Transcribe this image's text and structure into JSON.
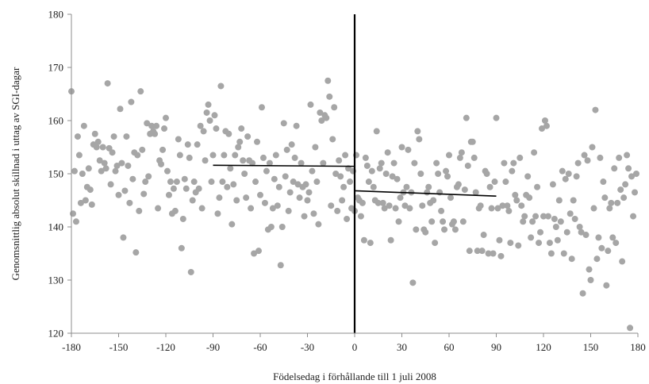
{
  "chart_data": {
    "type": "scatter",
    "title": "",
    "xlabel": "Födelsedag i förhållande till 1 juli 2008",
    "ylabel": "Genomsnittlig absolut skillnad i uttag av SGI-dagar",
    "xlim": [
      -180,
      180
    ],
    "ylim": [
      120,
      180
    ],
    "xticks": [
      "-180",
      "-150",
      "-120",
      "-90",
      "-60",
      "-30",
      "0",
      "30",
      "60",
      "90",
      "120",
      "150",
      "180"
    ],
    "yticks": [
      "120",
      "130",
      "140",
      "150",
      "160",
      "170",
      "180"
    ],
    "grid": false,
    "point_color": "#a6a6a6",
    "line_color": "#000000",
    "cutoff_x": 0,
    "fit_lines": [
      {
        "x": [
          -90,
          0
        ],
        "y": [
          151.6,
          151.4
        ]
      },
      {
        "x": [
          0,
          90
        ],
        "y": [
          146.8,
          145.8
        ]
      }
    ],
    "points_left": [
      [
        -180,
        165.5
      ],
      [
        -179,
        142.5
      ],
      [
        -178,
        150.5
      ],
      [
        -177,
        141.0
      ],
      [
        -176,
        157.0
      ],
      [
        -175,
        153.5
      ],
      [
        -174,
        144.5
      ],
      [
        -173,
        150.0
      ],
      [
        -172,
        159.0
      ],
      [
        -171,
        145.0
      ],
      [
        -170,
        147.5
      ],
      [
        -169,
        151.0
      ],
      [
        -168,
        147.0
      ],
      [
        -167,
        144.2
      ],
      [
        -166,
        155.5
      ],
      [
        -165,
        157.5
      ],
      [
        -164,
        155.0
      ],
      [
        -163,
        156.0
      ],
      [
        -162,
        152.5
      ],
      [
        -161,
        150.5
      ],
      [
        -160,
        155.0
      ],
      [
        -159,
        152.0
      ],
      [
        -158,
        151.0
      ],
      [
        -157,
        167.0
      ],
      [
        -156,
        154.8
      ],
      [
        -155,
        148.0
      ],
      [
        -154,
        154.0
      ],
      [
        -153,
        157.0
      ],
      [
        -152,
        150.5
      ],
      [
        -151,
        151.5
      ],
      [
        -150,
        146.0
      ],
      [
        -149,
        162.2
      ],
      [
        -148,
        152.0
      ],
      [
        -147,
        138.0
      ],
      [
        -146,
        146.8
      ],
      [
        -145,
        157.0
      ],
      [
        -144,
        151.5
      ],
      [
        -143,
        144.5
      ],
      [
        -142,
        163.5
      ],
      [
        -141,
        149.0
      ],
      [
        -140,
        154.0
      ],
      [
        -139,
        135.2
      ],
      [
        -138,
        153.5
      ],
      [
        -137,
        143.0
      ],
      [
        -136,
        165.5
      ],
      [
        -135,
        154.5
      ],
      [
        -134,
        146.2
      ],
      [
        -133,
        148.5
      ],
      [
        -132,
        159.5
      ],
      [
        -131,
        149.5
      ],
      [
        -130,
        157.5
      ],
      [
        -129,
        159.0
      ],
      [
        -128,
        158.0
      ],
      [
        -127,
        157.5
      ],
      [
        -126,
        159.0
      ],
      [
        -125,
        143.5
      ],
      [
        -124,
        152.5
      ],
      [
        -123,
        151.8
      ],
      [
        -122,
        154.5
      ],
      [
        -121,
        158.5
      ],
      [
        -120,
        160.5
      ],
      [
        -119,
        150.5
      ],
      [
        -118,
        146.0
      ],
      [
        -117,
        148.5
      ],
      [
        -116,
        142.5
      ],
      [
        -115,
        147.2
      ],
      [
        -114,
        143.0
      ],
      [
        -113,
        148.5
      ],
      [
        -112,
        156.5
      ],
      [
        -111,
        153.5
      ],
      [
        -110,
        136.0
      ],
      [
        -109,
        141.5
      ],
      [
        -108,
        149.0
      ],
      [
        -107,
        147.2
      ],
      [
        -106,
        155.5
      ],
      [
        -105,
        153.0
      ],
      [
        -104,
        131.5
      ],
      [
        -103,
        145.0
      ],
      [
        -102,
        148.5
      ],
      [
        -101,
        146.5
      ],
      [
        -100,
        155.5
      ],
      [
        -99,
        147.2
      ],
      [
        -98,
        159.0
      ],
      [
        -97,
        143.5
      ],
      [
        -96,
        158.0
      ],
      [
        -95,
        152.5
      ],
      [
        -94,
        161.5
      ],
      [
        -93,
        163.0
      ],
      [
        -92,
        160.0
      ],
      [
        -91,
        148.5
      ],
      [
        -90,
        153.5
      ],
      [
        -89,
        161.0
      ],
      [
        -88,
        158.5
      ],
      [
        -87,
        142.5
      ],
      [
        -86,
        145.5
      ],
      [
        -85,
        166.5
      ],
      [
        -84,
        148.5
      ],
      [
        -83,
        153.5
      ],
      [
        -82,
        158.0
      ],
      [
        -81,
        147.5
      ],
      [
        -80,
        157.5
      ],
      [
        -79,
        151.0
      ],
      [
        -78,
        140.5
      ],
      [
        -77,
        148.0
      ],
      [
        -76,
        153.5
      ],
      [
        -75,
        145.0
      ],
      [
        -74,
        155.0
      ],
      [
        -73,
        156.0
      ],
      [
        -72,
        158.5
      ],
      [
        -71,
        152.5
      ],
      [
        -70,
        150.0
      ],
      [
        -69,
        145.5
      ],
      [
        -68,
        157.0
      ],
      [
        -67,
        152.5
      ],
      [
        -66,
        143.5
      ],
      [
        -65,
        152.0
      ],
      [
        -64,
        135.0
      ],
      [
        -63,
        148.5
      ],
      [
        -62,
        156.0
      ],
      [
        -61,
        135.5
      ],
      [
        -60,
        146.0
      ],
      [
        -59,
        162.5
      ],
      [
        -58,
        153.0
      ],
      [
        -57,
        144.5
      ],
      [
        -56,
        150.5
      ],
      [
        -55,
        139.5
      ],
      [
        -54,
        152.0
      ],
      [
        -53,
        140.0
      ],
      [
        -52,
        143.5
      ],
      [
        -51,
        149.0
      ],
      [
        -50,
        153.5
      ],
      [
        -49,
        144.0
      ],
      [
        -48,
        147.5
      ],
      [
        -47,
        132.8
      ],
      [
        -46,
        140.0
      ],
      [
        -45,
        159.5
      ],
      [
        -44,
        149.5
      ],
      [
        -43,
        154.5
      ],
      [
        -42,
        143.0
      ],
      [
        -41,
        146.5
      ],
      [
        -40,
        155.5
      ],
      [
        -39,
        148.5
      ],
      [
        -38,
        153.0
      ],
      [
        -37,
        159.0
      ],
      [
        -36,
        148.0
      ],
      [
        -35,
        145.5
      ],
      [
        -34,
        152.0
      ],
      [
        -33,
        147.5
      ],
      [
        -32,
        142.0
      ],
      [
        -31,
        148.0
      ],
      [
        -30,
        145.0
      ],
      [
        -29,
        146.5
      ],
      [
        -28,
        163.0
      ],
      [
        -27,
        150.5
      ],
      [
        -26,
        142.5
      ],
      [
        -25,
        155.0
      ],
      [
        -24,
        148.5
      ],
      [
        -23,
        140.5
      ],
      [
        -22,
        161.5
      ],
      [
        -21,
        160.0
      ],
      [
        -20,
        152.0
      ],
      [
        -19,
        161.0
      ],
      [
        -18,
        160.5
      ],
      [
        -17,
        167.5
      ],
      [
        -16,
        164.5
      ],
      [
        -15,
        144.0
      ],
      [
        -14,
        156.5
      ],
      [
        -13,
        162.5
      ],
      [
        -12,
        150.0
      ],
      [
        -11,
        143.0
      ],
      [
        -10,
        152.5
      ],
      [
        -9,
        149.5
      ],
      [
        -8,
        145.0
      ],
      [
        -7,
        147.5
      ],
      [
        -6,
        153.5
      ],
      [
        -5,
        141.5
      ],
      [
        -4,
        151.0
      ],
      [
        -3,
        148.5
      ],
      [
        -2,
        143.5
      ],
      [
        -1,
        150.5
      ]
    ],
    "points_right": [
      [
        0,
        143.0
      ],
      [
        1,
        153.5
      ],
      [
        2,
        145.5
      ],
      [
        3,
        145.0
      ],
      [
        4,
        142.0
      ],
      [
        5,
        144.5
      ],
      [
        6,
        137.5
      ],
      [
        7,
        153.0
      ],
      [
        8,
        151.5
      ],
      [
        9,
        148.5
      ],
      [
        10,
        137.0
      ],
      [
        11,
        150.5
      ],
      [
        12,
        147.5
      ],
      [
        13,
        145.0
      ],
      [
        14,
        158.0
      ],
      [
        15,
        144.5
      ],
      [
        16,
        151.0
      ],
      [
        17,
        152.0
      ],
      [
        18,
        144.5
      ],
      [
        19,
        143.5
      ],
      [
        20,
        150.0
      ],
      [
        21,
        154.0
      ],
      [
        22,
        144.0
      ],
      [
        23,
        137.5
      ],
      [
        24,
        149.5
      ],
      [
        25,
        152.0
      ],
      [
        26,
        143.5
      ],
      [
        27,
        149.0
      ],
      [
        28,
        141.0
      ],
      [
        29,
        145.5
      ],
      [
        30,
        155.0
      ],
      [
        31,
        146.5
      ],
      [
        32,
        144.0
      ],
      [
        33,
        147.5
      ],
      [
        34,
        154.5
      ],
      [
        35,
        143.5
      ],
      [
        36,
        146.5
      ],
      [
        37,
        129.5
      ],
      [
        38,
        152.0
      ],
      [
        39,
        139.5
      ],
      [
        40,
        158.0
      ],
      [
        41,
        156.5
      ],
      [
        42,
        150.0
      ],
      [
        43,
        144.0
      ],
      [
        44,
        139.5
      ],
      [
        45,
        139.0
      ],
      [
        46,
        146.5
      ],
      [
        47,
        147.5
      ],
      [
        48,
        144.5
      ],
      [
        49,
        141.0
      ],
      [
        50,
        145.0
      ],
      [
        51,
        137.0
      ],
      [
        52,
        152.0
      ],
      [
        53,
        150.0
      ],
      [
        54,
        146.5
      ],
      [
        55,
        143.0
      ],
      [
        56,
        141.0
      ],
      [
        57,
        139.5
      ],
      [
        58,
        150.5
      ],
      [
        59,
        149.5
      ],
      [
        60,
        153.5
      ],
      [
        61,
        145.5
      ],
      [
        62,
        140.5
      ],
      [
        63,
        141.0
      ],
      [
        64,
        139.5
      ],
      [
        65,
        147.5
      ],
      [
        66,
        148.0
      ],
      [
        67,
        153.0
      ],
      [
        68,
        154.0
      ],
      [
        69,
        141.0
      ],
      [
        70,
        147.0
      ],
      [
        71,
        160.5
      ],
      [
        72,
        151.5
      ],
      [
        73,
        135.5
      ],
      [
        74,
        156.0
      ],
      [
        75,
        156.0
      ],
      [
        76,
        153.0
      ],
      [
        77,
        146.5
      ],
      [
        78,
        135.5
      ],
      [
        79,
        143.5
      ],
      [
        80,
        144.0
      ],
      [
        81,
        135.5
      ],
      [
        82,
        138.5
      ],
      [
        83,
        150.5
      ],
      [
        84,
        150.0
      ],
      [
        85,
        135.0
      ],
      [
        86,
        147.5
      ],
      [
        87,
        143.5
      ],
      [
        88,
        135.0
      ],
      [
        89,
        148.5
      ],
      [
        90,
        160.5
      ],
      [
        91,
        143.5
      ],
      [
        92,
        137.5
      ],
      [
        93,
        134.5
      ],
      [
        94,
        144.0
      ],
      [
        95,
        152.0
      ],
      [
        96,
        148.5
      ],
      [
        97,
        144.0
      ],
      [
        98,
        143.0
      ],
      [
        99,
        137.0
      ],
      [
        100,
        150.5
      ],
      [
        101,
        152.0
      ],
      [
        102,
        146.0
      ],
      [
        103,
        145.0
      ],
      [
        104,
        136.5
      ],
      [
        105,
        153.0
      ],
      [
        106,
        144.0
      ],
      [
        107,
        141.0
      ],
      [
        108,
        142.0
      ],
      [
        109,
        146.0
      ],
      [
        110,
        149.5
      ],
      [
        111,
        145.5
      ],
      [
        112,
        138.0
      ],
      [
        113,
        141.0
      ],
      [
        114,
        154.0
      ],
      [
        115,
        142.0
      ],
      [
        116,
        147.5
      ],
      [
        117,
        137.0
      ],
      [
        118,
        139.0
      ],
      [
        119,
        158.5
      ],
      [
        120,
        142.0
      ],
      [
        121,
        160.0
      ],
      [
        122,
        159.0
      ],
      [
        123,
        142.0
      ],
      [
        124,
        137.0
      ],
      [
        125,
        135.0
      ],
      [
        126,
        148.0
      ],
      [
        127,
        141.5
      ],
      [
        128,
        140.0
      ],
      [
        129,
        137.5
      ],
      [
        130,
        145.0
      ],
      [
        131,
        141.0
      ],
      [
        132,
        150.5
      ],
      [
        133,
        135.0
      ],
      [
        134,
        149.0
      ],
      [
        135,
        139.0
      ],
      [
        136,
        150.0
      ],
      [
        137,
        142.5
      ],
      [
        138,
        134.0
      ],
      [
        139,
        145.0
      ],
      [
        140,
        141.5
      ],
      [
        141,
        149.5
      ],
      [
        142,
        152.0
      ],
      [
        143,
        140.0
      ],
      [
        144,
        139.0
      ],
      [
        145,
        127.5
      ],
      [
        146,
        153.5
      ],
      [
        147,
        138.5
      ],
      [
        148,
        152.5
      ],
      [
        149,
        132.0
      ],
      [
        150,
        130.0
      ],
      [
        151,
        155.0
      ],
      [
        152,
        143.5
      ],
      [
        153,
        162.0
      ],
      [
        154,
        134.0
      ],
      [
        155,
        138.0
      ],
      [
        156,
        153.0
      ],
      [
        157,
        136.0
      ],
      [
        158,
        148.5
      ],
      [
        159,
        145.5
      ],
      [
        160,
        129.0
      ],
      [
        161,
        135.5
      ],
      [
        162,
        143.5
      ],
      [
        163,
        144.5
      ],
      [
        164,
        138.0
      ],
      [
        165,
        151.0
      ],
      [
        166,
        137.0
      ],
      [
        167,
        144.5
      ],
      [
        168,
        153.0
      ],
      [
        169,
        147.0
      ],
      [
        170,
        133.5
      ],
      [
        171,
        145.5
      ],
      [
        172,
        148.0
      ],
      [
        173,
        153.5
      ],
      [
        174,
        151.0
      ],
      [
        175,
        121.0
      ],
      [
        176,
        149.5
      ],
      [
        177,
        142.0
      ],
      [
        178,
        146.5
      ],
      [
        179,
        150.0
      ]
    ]
  }
}
